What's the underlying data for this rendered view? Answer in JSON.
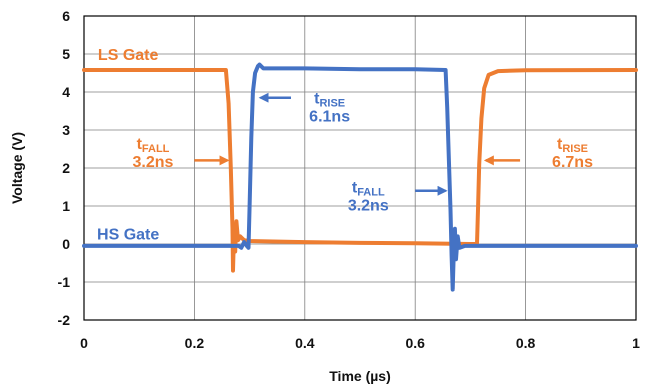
{
  "chart_data": {
    "type": "line",
    "title": "",
    "xlabel": "Time (µs)",
    "ylabel": "Voltage (V)",
    "xlim": [
      0,
      1
    ],
    "ylim": [
      -2,
      6
    ],
    "x_ticks": [
      "0",
      "0.2",
      "0.4",
      "0.6",
      "0.8",
      "1"
    ],
    "y_ticks": [
      "-2",
      "-1",
      "0",
      "1",
      "2",
      "3",
      "4",
      "5",
      "6"
    ],
    "grid": true,
    "colors": {
      "ls": "#ED7D31",
      "hs": "#4472C4"
    },
    "series": [
      {
        "name": "LS Gate",
        "color": "#ED7D31",
        "points": [
          [
            0,
            4.58
          ],
          [
            0.257,
            4.58
          ],
          [
            0.262,
            3.7
          ],
          [
            0.266,
            2.0
          ],
          [
            0.269,
            0.4
          ],
          [
            0.27,
            -0.7
          ],
          [
            0.272,
            0.4
          ],
          [
            0.274,
            -0.2
          ],
          [
            0.276,
            0.6
          ],
          [
            0.279,
            0.1
          ],
          [
            0.283,
            0.2
          ],
          [
            0.29,
            0.1
          ],
          [
            0.3,
            0.08
          ],
          [
            0.4,
            0.05
          ],
          [
            0.5,
            0.03
          ],
          [
            0.6,
            0.02
          ],
          [
            0.7,
            0.0
          ],
          [
            0.712,
            0.0
          ],
          [
            0.714,
            1.0
          ],
          [
            0.716,
            2.1
          ],
          [
            0.72,
            3.3
          ],
          [
            0.725,
            4.1
          ],
          [
            0.733,
            4.45
          ],
          [
            0.75,
            4.55
          ],
          [
            0.8,
            4.57
          ],
          [
            1.0,
            4.58
          ]
        ]
      },
      {
        "name": "HS Gate",
        "color": "#4472C4",
        "points": [
          [
            0,
            -0.05
          ],
          [
            0.28,
            -0.05
          ],
          [
            0.285,
            -0.1
          ],
          [
            0.29,
            0.05
          ],
          [
            0.295,
            -0.05
          ],
          [
            0.298,
            -0.1
          ],
          [
            0.3,
            1.0
          ],
          [
            0.303,
            2.8
          ],
          [
            0.306,
            4.0
          ],
          [
            0.31,
            4.5
          ],
          [
            0.315,
            4.68
          ],
          [
            0.318,
            4.72
          ],
          [
            0.325,
            4.62
          ],
          [
            0.4,
            4.62
          ],
          [
            0.5,
            4.6
          ],
          [
            0.6,
            4.6
          ],
          [
            0.655,
            4.58
          ],
          [
            0.658,
            3.6
          ],
          [
            0.661,
            2.2
          ],
          [
            0.664,
            0.9
          ],
          [
            0.666,
            -0.3
          ],
          [
            0.668,
            -1.2
          ],
          [
            0.67,
            -0.2
          ],
          [
            0.672,
            0.4
          ],
          [
            0.674,
            -0.4
          ],
          [
            0.677,
            0.2
          ],
          [
            0.68,
            -0.1
          ],
          [
            0.69,
            -0.05
          ],
          [
            1.0,
            -0.05
          ]
        ]
      }
    ],
    "annotations": [
      {
        "id": "ls-gate",
        "label": "LS Gate",
        "color": "#ED7D31",
        "x": 0.08,
        "y": 5.0
      },
      {
        "id": "hs-gate",
        "label": "HS Gate",
        "color": "#4472C4",
        "x": 0.08,
        "y": 0.27
      },
      {
        "id": "ls-tfall",
        "t": "t",
        "sub": "FALL",
        "value": "3.2ns",
        "color": "#ED7D31",
        "x": 0.125,
        "y": 2.5,
        "arrow_from": [
          0.2,
          2.2
        ],
        "arrow_to": [
          0.26,
          2.2
        ]
      },
      {
        "id": "hs-trise",
        "t": "t",
        "sub": "RISE",
        "value": "6.1ns",
        "color": "#4472C4",
        "x": 0.445,
        "y": 3.7,
        "arrow_from": [
          0.375,
          3.85
        ],
        "arrow_to": [
          0.32,
          3.85
        ]
      },
      {
        "id": "hs-tfall",
        "t": "t",
        "sub": "FALL",
        "value": "3.2ns",
        "color": "#4472C4",
        "x": 0.515,
        "y": 1.35,
        "arrow_from": [
          0.6,
          1.4
        ],
        "arrow_to": [
          0.655,
          1.4
        ]
      },
      {
        "id": "ls-trise",
        "t": "t",
        "sub": "RISE",
        "value": "6.7ns",
        "color": "#ED7D31",
        "x": 0.885,
        "y": 2.5,
        "arrow_from": [
          0.79,
          2.2
        ],
        "arrow_to": [
          0.728,
          2.2
        ]
      }
    ]
  }
}
